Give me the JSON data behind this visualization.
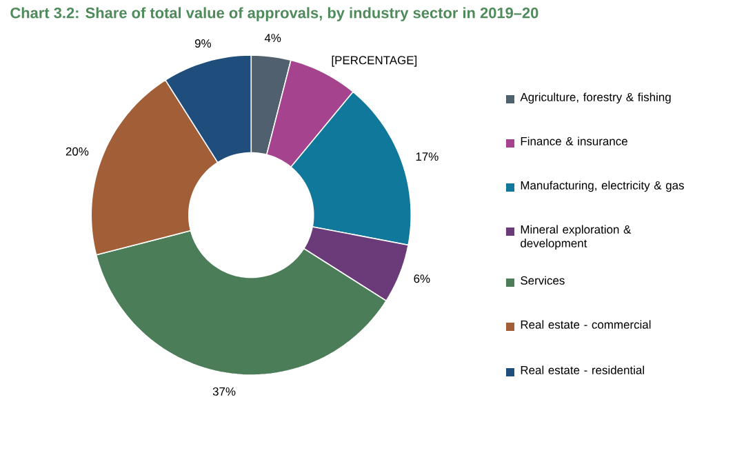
{
  "chart_data": {
    "type": "donut",
    "title": "Chart 3.2: Share of total value of approvals, by industry sector in 2019–20",
    "categories": [
      "Agriculture, forestry & fishing",
      "Finance & insurance",
      "Manufacturing, electricity & gas",
      "Mineral exploration & development",
      "Services",
      "Real estate - commercial",
      "Real estate - residential"
    ],
    "values": [
      4,
      7,
      17,
      6,
      37,
      20,
      9
    ],
    "value_labels": [
      "4%",
      "[PERCENTAGE]",
      "17%",
      "6%",
      "37%",
      "20%",
      "9%"
    ],
    "colors": [
      "#50606e",
      "#a5438f",
      "#10789a",
      "#6a3b78",
      "#4b7d58",
      "#a25f37",
      "#1f4d7c"
    ],
    "legend": "right"
  }
}
